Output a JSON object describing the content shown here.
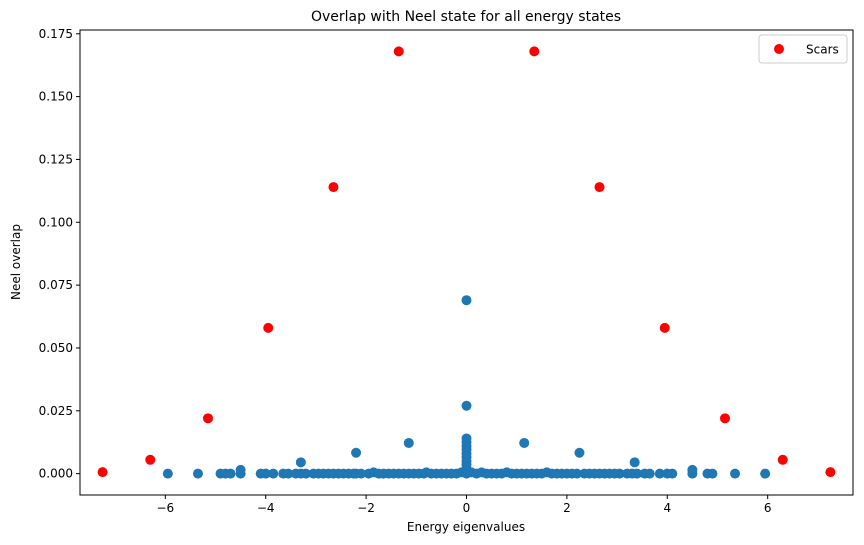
{
  "chart_data": {
    "type": "scatter",
    "title": "Overlap with Neel state for all energy states",
    "xlabel": "Energy eigenvalues",
    "ylabel": "Neel overlap",
    "xlim": [
      -7.7,
      7.7
    ],
    "ylim": [
      -0.0085,
      0.1765
    ],
    "xticks": [
      -6,
      -4,
      -2,
      0,
      2,
      4,
      6
    ],
    "xtick_labels": [
      "−6",
      "−4",
      "−2",
      "0",
      "2",
      "4",
      "6"
    ],
    "yticks": [
      0.0,
      0.025,
      0.05,
      0.075,
      0.1,
      0.125,
      0.15,
      0.175
    ],
    "ytick_labels": [
      "0.000",
      "0.025",
      "0.050",
      "0.075",
      "0.100",
      "0.125",
      "0.150",
      "0.175"
    ],
    "grid": false,
    "legend_position": "top-right",
    "series": [
      {
        "name": "",
        "color": "#1f77b4",
        "x": [
          -5.95,
          -5.35,
          -4.9,
          -4.8,
          -4.7,
          -4.5,
          -4.5,
          -4.1,
          -4.0,
          -3.85,
          -3.65,
          -3.55,
          -3.4,
          -3.3,
          -3.3,
          -3.2,
          -3.05,
          -2.95,
          -2.85,
          -2.75,
          -2.65,
          -2.55,
          -2.45,
          -2.35,
          -2.25,
          -2.2,
          -2.2,
          -2.1,
          -1.95,
          -1.85,
          -1.75,
          -1.65,
          -1.55,
          -1.45,
          -1.35,
          -1.25,
          -1.15,
          -1.15,
          -1.05,
          -0.95,
          -0.85,
          -0.8,
          -0.7,
          -0.6,
          -0.5,
          -0.4,
          -0.3,
          -0.2,
          -0.1,
          0.0,
          0.0,
          0.0,
          0.0,
          0.0,
          0.0,
          0.0,
          0.0,
          0.0,
          0.0,
          0.0,
          0.0,
          0.1,
          0.2,
          0.3,
          0.4,
          0.5,
          0.6,
          0.7,
          0.8,
          0.9,
          1.0,
          1.1,
          1.15,
          1.2,
          1.3,
          1.4,
          1.5,
          1.6,
          1.7,
          1.8,
          1.9,
          2.0,
          2.1,
          2.2,
          2.25,
          2.35,
          2.45,
          2.55,
          2.65,
          2.75,
          2.85,
          2.95,
          3.05,
          3.2,
          3.3,
          3.35,
          3.4,
          3.55,
          3.65,
          3.85,
          4.0,
          4.1,
          4.5,
          4.5,
          4.8,
          4.9,
          5.35,
          5.95
        ],
        "y": [
          0.0,
          0.0,
          0.0,
          0.0,
          0.0,
          0.0,
          0.0015,
          0.0,
          0.0,
          0.0,
          0.0,
          0.0,
          0.0,
          0.0,
          0.0045,
          0.0,
          0.0,
          0.0,
          0.0,
          0.0,
          0.0,
          0.0,
          0.0,
          0.0,
          0.0,
          0.0,
          0.0083,
          0.0,
          0.0,
          0.0005,
          0.0,
          0.0,
          0.0,
          0.0,
          0.0,
          0.0,
          0.0,
          0.0122,
          0.0,
          0.0,
          0.0,
          0.0005,
          0.0,
          0.0,
          0.0,
          0.0,
          0.0,
          0.0,
          0.0005,
          0.0,
          0.002,
          0.0035,
          0.005,
          0.0065,
          0.008,
          0.0095,
          0.011,
          0.0125,
          0.014,
          0.027,
          0.069,
          0.0005,
          0.0,
          0.0005,
          0.0,
          0.0,
          0.0,
          0.0,
          0.0005,
          0.0,
          0.0,
          0.0,
          0.0122,
          0.0,
          0.0,
          0.0,
          0.0,
          0.0005,
          0.0,
          0.0,
          0.0,
          0.0,
          0.0,
          0.0,
          0.0083,
          0.0,
          0.0,
          0.0,
          0.0,
          0.0,
          0.0,
          0.0,
          0.0,
          0.0,
          0.0,
          0.0045,
          0.0,
          0.0,
          0.0,
          0.0,
          0.0,
          0.0,
          0.0,
          0.0015,
          0.0,
          0.0,
          0.0,
          0.0
        ]
      },
      {
        "name": "Scars",
        "color": "#ff0000",
        "x": [
          -7.25,
          -6.3,
          -5.15,
          -3.95,
          -2.65,
          -1.35,
          1.35,
          2.65,
          3.95,
          5.15,
          6.3,
          7.25
        ],
        "y": [
          0.0006,
          0.0055,
          0.022,
          0.058,
          0.114,
          0.168,
          0.168,
          0.114,
          0.058,
          0.022,
          0.0055,
          0.0006
        ]
      }
    ]
  }
}
